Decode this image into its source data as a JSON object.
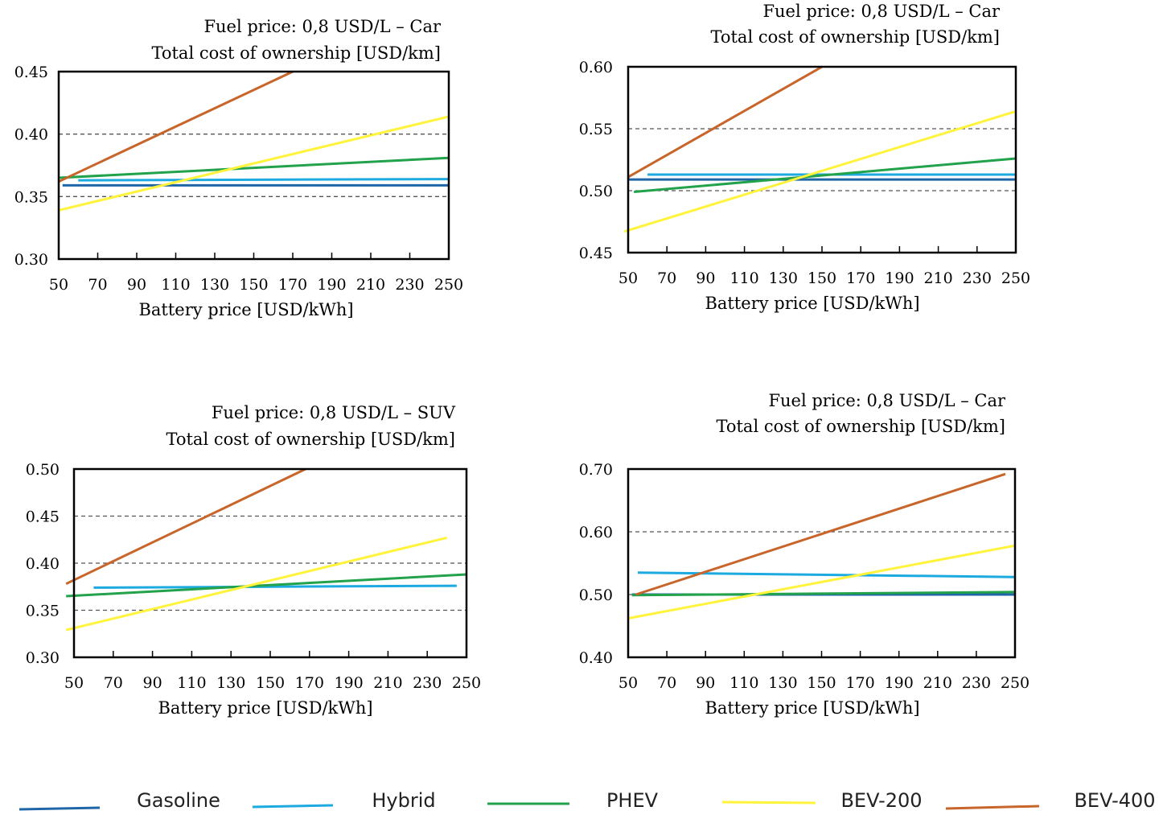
{
  "chart_data": [
    {
      "type": "line",
      "title": "Fuel price: 0,8 USD/L – Car",
      "subtitle": "Total cost of ownership [USD/km]",
      "xlabel": "Battery price [USD/kWh]",
      "ylabel": "",
      "xlim": [
        50,
        250
      ],
      "ylim": [
        0.3,
        0.45
      ],
      "xticks": [
        "50",
        "70",
        "90",
        "110",
        "130",
        "150",
        "170",
        "190",
        "210",
        "230",
        "250"
      ],
      "yticks": [
        "0.30",
        "0.35",
        "0.40",
        "0.45"
      ],
      "dashed_gridlines": [
        0.35,
        0.4
      ],
      "series": [
        {
          "name": "Gasoline",
          "x": [
            52,
            250
          ],
          "y": [
            0.359,
            0.359
          ]
        },
        {
          "name": "Hybrid",
          "x": [
            60,
            250
          ],
          "y": [
            0.363,
            0.364
          ]
        },
        {
          "name": "PHEV",
          "x": [
            50,
            250
          ],
          "y": [
            0.365,
            0.381
          ]
        },
        {
          "name": "BEV-200",
          "x": [
            50,
            250
          ],
          "y": [
            0.339,
            0.414
          ]
        },
        {
          "name": "BEV-400",
          "x": [
            50,
            170
          ],
          "y": [
            0.362,
            0.45
          ]
        }
      ]
    },
    {
      "type": "line",
      "title": "Fuel price: 0,8 USD/L – Car",
      "subtitle": "Total cost of ownership [USD/km]",
      "xlabel": "Battery price [USD/kWh]",
      "ylabel": "",
      "xlim": [
        50,
        250
      ],
      "ylim": [
        0.45,
        0.6
      ],
      "xticks": [
        "50",
        "70",
        "90",
        "110",
        "130",
        "150",
        "170",
        "190",
        "210",
        "230",
        "250"
      ],
      "yticks": [
        "0.45",
        "0.50",
        "0.55",
        "0.60"
      ],
      "dashed_gridlines": [
        0.5,
        0.55
      ],
      "series": [
        {
          "name": "Gasoline",
          "x": [
            50,
            250
          ],
          "y": [
            0.509,
            0.509
          ]
        },
        {
          "name": "Hybrid",
          "x": [
            60,
            250
          ],
          "y": [
            0.513,
            0.513
          ]
        },
        {
          "name": "PHEV",
          "x": [
            53,
            250
          ],
          "y": [
            0.499,
            0.526
          ]
        },
        {
          "name": "BEV-200",
          "x": [
            48,
            250
          ],
          "y": [
            0.467,
            0.564
          ]
        },
        {
          "name": "BEV-400",
          "x": [
            50,
            150
          ],
          "y": [
            0.511,
            0.6
          ]
        }
      ]
    },
    {
      "type": "line",
      "title": "Fuel price: 0,8 USD/L – SUV",
      "subtitle": "Total cost of ownership [USD/km]",
      "xlabel": "Battery price [USD/kWh]",
      "ylabel": "",
      "xlim": [
        50,
        250
      ],
      "ylim": [
        0.3,
        0.5
      ],
      "xticks": [
        "50",
        "70",
        "90",
        "110",
        "130",
        "150",
        "170",
        "190",
        "210",
        "230",
        "250"
      ],
      "yticks": [
        "0.30",
        "0.35",
        "0.40",
        "0.45",
        "0.50"
      ],
      "dashed_gridlines": [
        0.35,
        0.4,
        0.45
      ],
      "series": [
        {
          "name": "Hybrid",
          "x": [
            60,
            245
          ],
          "y": [
            0.374,
            0.376
          ]
        },
        {
          "name": "PHEV",
          "x": [
            46,
            250
          ],
          "y": [
            0.365,
            0.388
          ]
        },
        {
          "name": "BEV-200",
          "x": [
            46,
            240
          ],
          "y": [
            0.329,
            0.427
          ]
        },
        {
          "name": "BEV-400",
          "x": [
            46,
            168
          ],
          "y": [
            0.378,
            0.5
          ]
        }
      ]
    },
    {
      "type": "line",
      "title": "Fuel price: 0,8 USD/L – Car",
      "subtitle": "Total cost of ownership [USD/km]",
      "xlabel": "Battery price [USD/kWh]",
      "ylabel": "",
      "xlim": [
        50,
        250
      ],
      "ylim": [
        0.4,
        0.7
      ],
      "xticks": [
        "50",
        "70",
        "90",
        "110",
        "130",
        "150",
        "170",
        "190",
        "210",
        "230",
        "250"
      ],
      "yticks": [
        "0.40",
        "0.50",
        "0.60",
        "0.70"
      ],
      "dashed_gridlines": [
        0.5,
        0.6
      ],
      "series": [
        {
          "name": "Gasoline",
          "x": [
            52,
            250
          ],
          "y": [
            0.5,
            0.5
          ]
        },
        {
          "name": "Hybrid",
          "x": [
            55,
            250
          ],
          "y": [
            0.535,
            0.528
          ]
        },
        {
          "name": "PHEV",
          "x": [
            52,
            250
          ],
          "y": [
            0.499,
            0.504
          ]
        },
        {
          "name": "BEV-200",
          "x": [
            50,
            250
          ],
          "y": [
            0.462,
            0.578
          ]
        },
        {
          "name": "BEV-400",
          "x": [
            54,
            245
          ],
          "y": [
            0.5,
            0.692
          ]
        }
      ]
    }
  ],
  "legend": {
    "items": [
      {
        "name": "Gasoline",
        "color": "#1F66A8"
      },
      {
        "name": "Hybrid",
        "color": "#1CAAE0"
      },
      {
        "name": "PHEV",
        "color": "#22A24A"
      },
      {
        "name": "BEV-200",
        "color": "#FFF33B"
      },
      {
        "name": "BEV-400",
        "color": "#C8652A"
      }
    ]
  }
}
